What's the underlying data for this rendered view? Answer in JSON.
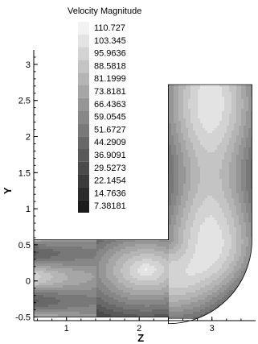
{
  "chart_data": {
    "type": "heatmap",
    "title": "",
    "xlabel": "Z",
    "ylabel": "Y",
    "xlim": [
      0.55,
      3.6
    ],
    "ylim": [
      -0.55,
      3.2
    ],
    "x_ticks": [
      "1",
      "2",
      "3"
    ],
    "x_tick_values": [
      1,
      2,
      3
    ],
    "y_ticks": [
      "-0.5",
      "0",
      "0.5",
      "1",
      "1.5",
      "2",
      "2.5",
      "3"
    ],
    "y_tick_values": [
      -0.5,
      0,
      0.5,
      1,
      1.5,
      2,
      2.5,
      3
    ],
    "legend": {
      "title": "Velocity Magnitude",
      "levels": [
        "110.727",
        "103.345",
        "95.9636",
        "88.5818",
        "81.1999",
        "73.8181",
        "66.4363",
        "59.0545",
        "51.6727",
        "44.2909",
        "36.9091",
        "29.5273",
        "22.1454",
        "14.7636",
        "7.38181"
      ],
      "level_values": [
        110.727,
        103.345,
        95.9636,
        88.5818,
        81.1999,
        73.8181,
        66.4363,
        59.0545,
        51.6727,
        44.2909,
        36.9091,
        29.5273,
        22.1454,
        14.7636,
        7.38181
      ],
      "placement": "top-left"
    },
    "grid": false,
    "colormap": "grayscale",
    "color_high": "#f2f2f2",
    "color_low": "#1c1c1c"
  }
}
